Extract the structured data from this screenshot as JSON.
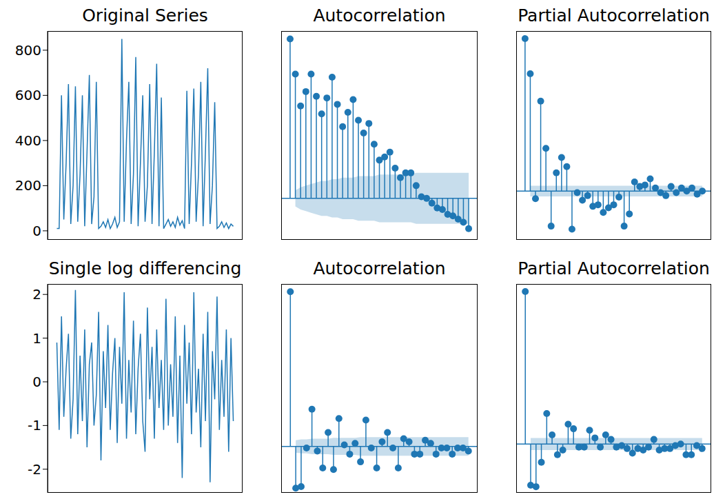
{
  "chart_data": [
    {
      "type": "line",
      "title": "Original Series",
      "color": "#1f77b4",
      "tick_labels": "y",
      "x": [
        0,
        1,
        2,
        3,
        4,
        5,
        6,
        7,
        8,
        9,
        10,
        11,
        12,
        13,
        14,
        15,
        16,
        17,
        18,
        19,
        20,
        21,
        22,
        23,
        24,
        25,
        26,
        27,
        28,
        29,
        30,
        31,
        32,
        33,
        34,
        35,
        36,
        37,
        38,
        39,
        40,
        41,
        42,
        43,
        44,
        45,
        46,
        47,
        48,
        49,
        50,
        51,
        52,
        53,
        54,
        55,
        56,
        57,
        58,
        59,
        60,
        61,
        62,
        63,
        64,
        65,
        66,
        67,
        68,
        69,
        70,
        71,
        72,
        73,
        74,
        75,
        76
      ],
      "values": [
        10,
        10,
        600,
        50,
        300,
        650,
        30,
        200,
        640,
        40,
        250,
        600,
        20,
        350,
        690,
        30,
        150,
        660,
        10,
        20,
        40,
        15,
        50,
        10,
        30,
        60,
        15,
        40,
        850,
        40,
        400,
        660,
        30,
        250,
        770,
        20,
        300,
        600,
        40,
        200,
        650,
        30,
        350,
        740,
        20,
        590,
        10,
        30,
        50,
        20,
        40,
        15,
        60,
        25,
        45,
        10,
        620,
        30,
        300,
        630,
        40,
        250,
        660,
        20,
        350,
        720,
        30,
        200,
        570,
        10,
        20,
        40,
        15,
        35,
        10,
        30,
        20
      ],
      "xlim": [
        -4,
        80
      ],
      "ylim": [
        -40,
        885
      ],
      "yticks": [
        0,
        200,
        400,
        600,
        800
      ]
    },
    {
      "type": "stem",
      "title": "Autocorrelation",
      "color": "#1f77b4",
      "tick_labels": false,
      "x": [
        0,
        1,
        2,
        3,
        4,
        5,
        6,
        7,
        8,
        9,
        10,
        11,
        12,
        13,
        14,
        15,
        16,
        17,
        18,
        19,
        20,
        21,
        22,
        23,
        24,
        25,
        26,
        27,
        28,
        29,
        30,
        31,
        32,
        33,
        34
      ],
      "values": [
        1.0,
        0.78,
        0.58,
        0.67,
        0.78,
        0.64,
        0.53,
        0.63,
        0.76,
        0.59,
        0.45,
        0.54,
        0.62,
        0.49,
        0.41,
        0.47,
        0.34,
        0.24,
        0.26,
        0.29,
        0.19,
        0.13,
        0.16,
        0.16,
        0.08,
        0.01,
        0.0,
        -0.03,
        -0.06,
        -0.07,
        -0.1,
        -0.11,
        -0.13,
        -0.15,
        -0.19
      ],
      "confidence": [
        null,
        [
          -0.05,
          0.05
        ],
        [
          -0.07,
          0.07
        ],
        [
          -0.08,
          0.08
        ],
        [
          -0.09,
          0.09
        ],
        [
          -0.1,
          0.1
        ],
        [
          -0.11,
          0.11
        ],
        [
          -0.11,
          0.11
        ],
        [
          -0.12,
          0.12
        ],
        [
          -0.12,
          0.12
        ],
        [
          -0.13,
          0.13
        ],
        [
          -0.13,
          0.13
        ],
        [
          -0.13,
          0.13
        ],
        [
          -0.14,
          0.14
        ],
        [
          -0.14,
          0.14
        ],
        [
          -0.14,
          0.14
        ],
        [
          -0.14,
          0.14
        ],
        [
          -0.15,
          0.15
        ],
        [
          -0.15,
          0.15
        ],
        [
          -0.15,
          0.15
        ],
        [
          -0.15,
          0.15
        ],
        [
          -0.15,
          0.15
        ],
        [
          -0.15,
          0.15
        ],
        [
          -0.15,
          0.15
        ],
        [
          -0.16,
          0.16
        ],
        [
          -0.16,
          0.16
        ],
        [
          -0.16,
          0.16
        ],
        [
          -0.16,
          0.16
        ],
        [
          -0.16,
          0.16
        ],
        [
          -0.16,
          0.16
        ],
        [
          -0.16,
          0.16
        ],
        [
          -0.16,
          0.16
        ],
        [
          -0.16,
          0.16
        ],
        [
          -0.16,
          0.16
        ],
        [
          -0.16,
          0.16
        ]
      ],
      "xlim": [
        -1.7,
        35.7
      ],
      "ylim": [
        -0.26,
        1.05
      ]
    },
    {
      "type": "stem",
      "title": "Partial Autocorrelation",
      "color": "#1f77b4",
      "tick_labels": false,
      "x": [
        0,
        1,
        2,
        3,
        4,
        5,
        6,
        7,
        8,
        9,
        10,
        11,
        12,
        13,
        14,
        15,
        16,
        17,
        18,
        19,
        20,
        21,
        22,
        23,
        24,
        25,
        26,
        27,
        28,
        29,
        30,
        31,
        32,
        33,
        34
      ],
      "values": [
        1.0,
        0.77,
        -0.05,
        0.59,
        0.28,
        -0.23,
        0.12,
        0.22,
        0.16,
        -0.25,
        -0.01,
        -0.06,
        -0.03,
        -0.1,
        -0.09,
        -0.14,
        -0.11,
        -0.09,
        -0.04,
        -0.23,
        -0.15,
        0.06,
        0.03,
        0.04,
        0.08,
        0.02,
        -0.01,
        -0.03,
        0.03,
        -0.01,
        0.02,
        0.0,
        0.02,
        -0.02,
        0.0
      ],
      "confidence": [
        null,
        [
          -0.035,
          0.035
        ],
        [
          -0.035,
          0.035
        ],
        [
          -0.035,
          0.035
        ],
        [
          -0.035,
          0.035
        ],
        [
          -0.035,
          0.035
        ],
        [
          -0.035,
          0.035
        ],
        [
          -0.035,
          0.035
        ],
        [
          -0.035,
          0.035
        ],
        [
          -0.035,
          0.035
        ],
        [
          -0.035,
          0.035
        ],
        [
          -0.035,
          0.035
        ],
        [
          -0.035,
          0.035
        ],
        [
          -0.035,
          0.035
        ],
        [
          -0.035,
          0.035
        ],
        [
          -0.035,
          0.035
        ],
        [
          -0.035,
          0.035
        ],
        [
          -0.035,
          0.035
        ],
        [
          -0.035,
          0.035
        ],
        [
          -0.035,
          0.035
        ],
        [
          -0.035,
          0.035
        ],
        [
          -0.035,
          0.035
        ],
        [
          -0.035,
          0.035
        ],
        [
          -0.035,
          0.035
        ],
        [
          -0.035,
          0.035
        ],
        [
          -0.035,
          0.035
        ],
        [
          -0.035,
          0.035
        ],
        [
          -0.035,
          0.035
        ],
        [
          -0.035,
          0.035
        ],
        [
          -0.035,
          0.035
        ],
        [
          -0.035,
          0.035
        ],
        [
          -0.035,
          0.035
        ],
        [
          -0.035,
          0.035
        ],
        [
          -0.035,
          0.035
        ],
        [
          -0.035,
          0.035
        ]
      ],
      "xlim": [
        -1.7,
        35.7
      ],
      "ylim": [
        -0.32,
        1.05
      ]
    },
    {
      "type": "line",
      "title": "Single log differencing",
      "color": "#1f77b4",
      "tick_labels": "y",
      "x": [
        0,
        1,
        2,
        3,
        4,
        5,
        6,
        7,
        8,
        9,
        10,
        11,
        12,
        13,
        14,
        15,
        16,
        17,
        18,
        19,
        20,
        21,
        22,
        23,
        24,
        25,
        26,
        27,
        28,
        29,
        30,
        31,
        32,
        33,
        34,
        35,
        36,
        37,
        38,
        39,
        40,
        41,
        42,
        43,
        44,
        45,
        46,
        47,
        48,
        49,
        50,
        51,
        52,
        53,
        54,
        55,
        56,
        57,
        58,
        59,
        60,
        61,
        62,
        63,
        64,
        65,
        66,
        67,
        68,
        69,
        70,
        71,
        72,
        73,
        74,
        75,
        76
      ],
      "values": [
        0.9,
        -1.1,
        1.5,
        -0.8,
        0.3,
        1.1,
        -1.3,
        -0.4,
        2.1,
        -1.2,
        0.6,
        -0.9,
        1.2,
        -1.5,
        0.4,
        0.9,
        -1.0,
        -0.3,
        1.6,
        -1.8,
        0.7,
        -0.6,
        1.3,
        -1.1,
        0.2,
        1.0,
        -1.4,
        0.8,
        -0.5,
        2.05,
        -1.3,
        0.5,
        -0.7,
        1.4,
        -1.2,
        0.3,
        1.1,
        -0.9,
        -1.6,
        1.7,
        -0.4,
        0.8,
        -1.3,
        1.2,
        -0.6,
        0.5,
        -1.1,
        1.9,
        -1.0,
        0.4,
        -0.8,
        1.5,
        -1.4,
        0.6,
        -2.2,
        1.3,
        -0.5,
        0.9,
        -1.2,
        2.05,
        -0.7,
        0.3,
        -1.5,
        1.1,
        -0.9,
        1.6,
        -2.3,
        0.7,
        -0.4,
        1.95,
        -1.1,
        0.5,
        -0.8,
        1.2,
        -1.6,
        1.0,
        -0.9
      ],
      "xlim": [
        -4,
        80
      ],
      "ylim": [
        -2.54,
        2.24
      ],
      "yticks": [
        -2,
        -1,
        0,
        1,
        2
      ]
    },
    {
      "type": "stem",
      "title": "Autocorrelation",
      "color": "#1f77b4",
      "tick_labels": false,
      "x": [
        0,
        1,
        2,
        3,
        4,
        5,
        6,
        7,
        8,
        9,
        10,
        11,
        12,
        13,
        14,
        15,
        16,
        17,
        18,
        19,
        20,
        21,
        22,
        23,
        24,
        25,
        26,
        27,
        28,
        29,
        30,
        31,
        32,
        33
      ],
      "values": [
        1.0,
        -0.27,
        -0.26,
        -0.01,
        0.24,
        -0.03,
        -0.14,
        0.09,
        -0.15,
        0.18,
        0.01,
        -0.05,
        0.02,
        -0.1,
        0.17,
        -0.01,
        -0.14,
        0.03,
        0.09,
        -0.01,
        -0.14,
        0.05,
        0.03,
        -0.05,
        -0.05,
        0.04,
        0.02,
        -0.05,
        -0.01,
        -0.01,
        -0.05,
        -0.01,
        -0.01,
        -0.03
      ],
      "confidence": [
        null,
        [
          -0.04,
          0.04
        ],
        [
          -0.045,
          0.045
        ],
        [
          -0.045,
          0.045
        ],
        [
          -0.05,
          0.05
        ],
        [
          -0.05,
          0.05
        ],
        [
          -0.05,
          0.05
        ],
        [
          -0.05,
          0.05
        ],
        [
          -0.055,
          0.055
        ],
        [
          -0.055,
          0.055
        ],
        [
          -0.055,
          0.055
        ],
        [
          -0.055,
          0.055
        ],
        [
          -0.055,
          0.055
        ],
        [
          -0.06,
          0.06
        ],
        [
          -0.06,
          0.06
        ],
        [
          -0.06,
          0.06
        ],
        [
          -0.06,
          0.06
        ],
        [
          -0.06,
          0.06
        ],
        [
          -0.06,
          0.06
        ],
        [
          -0.06,
          0.06
        ],
        [
          -0.06,
          0.06
        ],
        [
          -0.06,
          0.06
        ],
        [
          -0.06,
          0.06
        ],
        [
          -0.06,
          0.06
        ],
        [
          -0.06,
          0.06
        ],
        [
          -0.06,
          0.06
        ],
        [
          -0.06,
          0.06
        ],
        [
          -0.06,
          0.06
        ],
        [
          -0.06,
          0.06
        ],
        [
          -0.06,
          0.06
        ],
        [
          -0.06,
          0.06
        ],
        [
          -0.06,
          0.06
        ],
        [
          -0.06,
          0.06
        ],
        [
          -0.06,
          0.06
        ]
      ],
      "xlim": [
        -1.7,
        34.7
      ],
      "ylim": [
        -0.3,
        1.05
      ]
    },
    {
      "type": "stem",
      "title": "Partial Autocorrelation",
      "color": "#1f77b4",
      "tick_labels": false,
      "x": [
        0,
        1,
        2,
        3,
        4,
        5,
        6,
        7,
        8,
        9,
        10,
        11,
        12,
        13,
        14,
        15,
        16,
        17,
        18,
        19,
        20,
        21,
        22,
        23,
        24,
        25,
        26,
        27,
        28,
        29,
        30,
        31,
        32,
        33
      ],
      "values": [
        1.0,
        -0.27,
        -0.28,
        -0.12,
        0.2,
        0.06,
        -0.07,
        -0.04,
        0.13,
        0.1,
        -0.02,
        -0.02,
        0.09,
        0.04,
        -0.02,
        0.06,
        0.03,
        -0.02,
        -0.01,
        -0.03,
        -0.06,
        -0.03,
        -0.04,
        -0.02,
        0.03,
        -0.04,
        -0.03,
        -0.03,
        -0.01,
        0.0,
        -0.07,
        -0.07,
        -0.01,
        -0.03
      ],
      "confidence": [
        null,
        [
          -0.04,
          0.04
        ],
        [
          -0.04,
          0.04
        ],
        [
          -0.04,
          0.04
        ],
        [
          -0.04,
          0.04
        ],
        [
          -0.04,
          0.04
        ],
        [
          -0.04,
          0.04
        ],
        [
          -0.04,
          0.04
        ],
        [
          -0.04,
          0.04
        ],
        [
          -0.04,
          0.04
        ],
        [
          -0.04,
          0.04
        ],
        [
          -0.04,
          0.04
        ],
        [
          -0.04,
          0.04
        ],
        [
          -0.04,
          0.04
        ],
        [
          -0.04,
          0.04
        ],
        [
          -0.04,
          0.04
        ],
        [
          -0.04,
          0.04
        ],
        [
          -0.04,
          0.04
        ],
        [
          -0.04,
          0.04
        ],
        [
          -0.04,
          0.04
        ],
        [
          -0.04,
          0.04
        ],
        [
          -0.04,
          0.04
        ],
        [
          -0.04,
          0.04
        ],
        [
          -0.04,
          0.04
        ],
        [
          -0.04,
          0.04
        ],
        [
          -0.04,
          0.04
        ],
        [
          -0.04,
          0.04
        ],
        [
          -0.04,
          0.04
        ],
        [
          -0.04,
          0.04
        ],
        [
          -0.04,
          0.04
        ],
        [
          -0.04,
          0.04
        ],
        [
          -0.04,
          0.04
        ],
        [
          -0.04,
          0.04
        ],
        [
          -0.04,
          0.04
        ]
      ],
      "xlim": [
        -1.7,
        34.7
      ],
      "ylim": [
        -0.32,
        1.05
      ]
    }
  ]
}
